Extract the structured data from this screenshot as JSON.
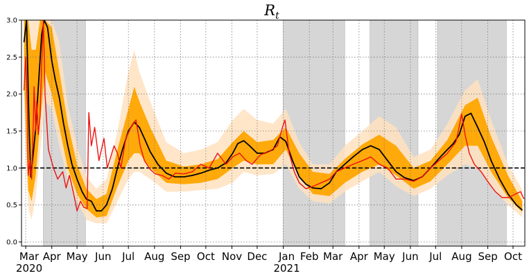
{
  "chart_data": {
    "type": "line",
    "title": "R",
    "title_subscript": "t",
    "xlabel": "",
    "ylabel": "",
    "ylim": [
      0,
      3
    ],
    "x_range": [
      "2020-02-25",
      "2021-10-15"
    ],
    "yticks": [
      "0.0",
      "0.5",
      "1.0",
      "1.5",
      "2.0",
      "2.5",
      "3.0"
    ],
    "yticks_values": [
      0,
      0.5,
      1.0,
      1.5,
      2.0,
      2.5,
      3.0
    ],
    "xticks": [
      {
        "label": "Mar",
        "date": "2020-03-01",
        "year_label": "2020"
      },
      {
        "label": "Apr",
        "date": "2020-04-01"
      },
      {
        "label": "May",
        "date": "2020-05-01"
      },
      {
        "label": "Jun",
        "date": "2020-06-01"
      },
      {
        "label": "Jul",
        "date": "2020-07-01"
      },
      {
        "label": "Aug",
        "date": "2020-08-01"
      },
      {
        "label": "Sep",
        "date": "2020-09-01"
      },
      {
        "label": "Oct",
        "date": "2020-10-01"
      },
      {
        "label": "Nov",
        "date": "2020-11-01"
      },
      {
        "label": "Dec",
        "date": "2020-12-01"
      },
      {
        "label": "Jan",
        "date": "2021-01-01",
        "year_label": "2021"
      },
      {
        "label": "Feb",
        "date": "2021-02-01"
      },
      {
        "label": "Mar",
        "date": "2021-03-01"
      },
      {
        "label": "Apr",
        "date": "2021-04-01"
      },
      {
        "label": "May",
        "date": "2021-05-01"
      },
      {
        "label": "Jun",
        "date": "2021-06-01"
      },
      {
        "label": "Jul",
        "date": "2021-07-01"
      },
      {
        "label": "Aug",
        "date": "2021-08-01"
      },
      {
        "label": "Sep",
        "date": "2021-09-01"
      },
      {
        "label": "Oct",
        "date": "2021-10-01"
      }
    ],
    "grid": true,
    "reference_line": {
      "y": 1.0,
      "style": "dashed",
      "color": "#000000"
    },
    "shaded_periods": [
      {
        "start": "2020-03-22",
        "end": "2020-05-11"
      },
      {
        "start": "2021-01-01",
        "end": "2021-03-15"
      },
      {
        "start": "2021-04-14",
        "end": "2021-06-10"
      },
      {
        "start": "2021-07-03",
        "end": "2021-09-23"
      }
    ],
    "colors": {
      "band_outer": "#FFE2BF",
      "band_inner": "#FFA500",
      "estimate_line": "#000000",
      "observed_line": "#EE1111",
      "shaded_period": "#D6D6D6"
    },
    "series": [
      {
        "role": "estimate",
        "x": [
          "2020-02-28",
          "2020-03-02",
          "2020-03-05",
          "2020-03-07",
          "2020-03-10",
          "2020-03-13",
          "2020-03-16",
          "2020-03-20",
          "2020-03-23",
          "2020-03-27",
          "2020-04-01",
          "2020-04-05",
          "2020-04-10",
          "2020-04-15",
          "2020-04-20",
          "2020-04-25",
          "2020-05-01",
          "2020-05-07",
          "2020-05-12",
          "2020-05-18",
          "2020-05-24",
          "2020-05-30",
          "2020-06-05",
          "2020-06-12",
          "2020-06-18",
          "2020-06-24",
          "2020-07-01",
          "2020-07-08",
          "2020-07-14",
          "2020-07-20",
          "2020-07-27",
          "2020-08-05",
          "2020-08-15",
          "2020-08-25",
          "2020-09-05",
          "2020-09-15",
          "2020-09-25",
          "2020-10-05",
          "2020-10-15",
          "2020-10-25",
          "2020-11-02",
          "2020-11-08",
          "2020-11-15",
          "2020-11-22",
          "2020-12-01",
          "2020-12-10",
          "2020-12-20",
          "2020-12-28",
          "2021-01-04",
          "2021-01-12",
          "2021-01-20",
          "2021-01-28",
          "2021-02-05",
          "2021-02-15",
          "2021-02-25",
          "2021-03-05",
          "2021-03-15",
          "2021-03-25",
          "2021-04-05",
          "2021-04-15",
          "2021-04-25",
          "2021-05-05",
          "2021-05-15",
          "2021-05-25",
          "2021-06-05",
          "2021-06-15",
          "2021-06-25",
          "2021-07-05",
          "2021-07-15",
          "2021-07-22",
          "2021-07-29",
          "2021-08-05",
          "2021-08-12",
          "2021-08-20",
          "2021-08-28",
          "2021-09-05",
          "2021-09-15",
          "2021-09-25",
          "2021-10-05",
          "2021-10-12"
        ],
        "y": [
          2.7,
          3.0,
          1.6,
          0.88,
          1.2,
          1.55,
          2.1,
          2.8,
          3.0,
          2.9,
          2.45,
          2.2,
          1.95,
          1.6,
          1.3,
          1.05,
          0.85,
          0.68,
          0.58,
          0.55,
          0.42,
          0.42,
          0.5,
          0.72,
          1.0,
          1.25,
          1.5,
          1.62,
          1.55,
          1.4,
          1.22,
          1.05,
          0.93,
          0.88,
          0.88,
          0.9,
          0.93,
          0.97,
          1.0,
          1.07,
          1.2,
          1.33,
          1.37,
          1.3,
          1.2,
          1.2,
          1.25,
          1.42,
          1.36,
          1.1,
          0.88,
          0.78,
          0.73,
          0.72,
          0.8,
          0.95,
          1.05,
          1.15,
          1.25,
          1.3,
          1.25,
          1.1,
          0.95,
          0.87,
          0.83,
          0.88,
          1.0,
          1.13,
          1.25,
          1.33,
          1.45,
          1.7,
          1.74,
          1.55,
          1.35,
          1.1,
          0.85,
          0.65,
          0.5,
          0.43
        ]
      },
      {
        "role": "observed",
        "x": [
          "2020-02-28",
          "2020-03-01",
          "2020-03-03",
          "2020-03-04",
          "2020-03-06",
          "2020-03-08",
          "2020-03-10",
          "2020-03-11",
          "2020-03-13",
          "2020-03-14",
          "2020-03-16",
          "2020-03-18",
          "2020-03-20",
          "2020-03-22",
          "2020-03-24",
          "2020-03-28",
          "2020-04-03",
          "2020-04-08",
          "2020-04-14",
          "2020-04-18",
          "2020-04-22",
          "2020-04-27",
          "2020-05-01",
          "2020-05-05",
          "2020-05-09",
          "2020-05-13",
          "2020-05-15",
          "2020-05-18",
          "2020-05-22",
          "2020-05-27",
          "2020-06-02",
          "2020-06-06",
          "2020-06-10",
          "2020-06-14",
          "2020-06-18",
          "2020-06-22",
          "2020-06-28",
          "2020-07-04",
          "2020-07-10",
          "2020-07-15",
          "2020-07-20",
          "2020-07-27",
          "2020-08-02",
          "2020-08-10",
          "2020-08-18",
          "2020-08-26",
          "2020-09-05",
          "2020-09-15",
          "2020-09-25",
          "2020-10-05",
          "2020-10-15",
          "2020-10-25",
          "2020-11-02",
          "2020-11-10",
          "2020-11-18",
          "2020-11-25",
          "2020-12-05",
          "2020-12-15",
          "2020-12-25",
          "2020-12-31",
          "2021-01-03",
          "2021-01-08",
          "2021-01-14",
          "2021-01-20",
          "2021-01-28",
          "2021-02-05",
          "2021-02-15",
          "2021-02-25",
          "2021-03-05",
          "2021-03-15",
          "2021-03-25",
          "2021-04-05",
          "2021-04-15",
          "2021-04-25",
          "2021-05-05",
          "2021-05-15",
          "2021-05-25",
          "2021-06-05",
          "2021-06-15",
          "2021-06-25",
          "2021-07-05",
          "2021-07-15",
          "2021-07-25",
          "2021-07-28",
          "2021-08-01",
          "2021-08-05",
          "2021-08-10",
          "2021-08-16",
          "2021-08-24",
          "2021-09-02",
          "2021-09-10",
          "2021-09-18",
          "2021-09-26",
          "2021-10-04",
          "2021-10-10",
          "2021-10-14"
        ],
        "y": [
          2.05,
          2.5,
          1.85,
          0.9,
          1.1,
          0.85,
          1.6,
          2.1,
          1.5,
          1.9,
          1.45,
          1.7,
          2.4,
          3.0,
          2.0,
          1.25,
          1.0,
          0.85,
          0.95,
          0.73,
          0.9,
          0.65,
          0.42,
          0.55,
          0.47,
          0.45,
          1.75,
          1.3,
          1.55,
          1.1,
          1.4,
          1.0,
          1.15,
          1.3,
          1.2,
          1.0,
          1.4,
          1.55,
          1.65,
          1.3,
          1.1,
          0.98,
          0.92,
          0.9,
          0.85,
          0.93,
          0.92,
          0.95,
          1.05,
          1.0,
          1.2,
          1.05,
          1.15,
          1.2,
          1.1,
          1.05,
          1.18,
          1.22,
          1.3,
          1.55,
          1.65,
          1.2,
          0.95,
          0.8,
          0.72,
          0.75,
          0.8,
          0.85,
          0.95,
          1.0,
          1.05,
          1.1,
          1.15,
          1.05,
          1.0,
          0.85,
          0.85,
          0.82,
          0.88,
          1.0,
          1.1,
          1.2,
          1.35,
          1.5,
          1.73,
          1.45,
          1.2,
          1.05,
          0.95,
          0.8,
          0.68,
          0.6,
          0.6,
          0.65,
          0.68,
          0.58
        ]
      }
    ],
    "band_outer": {
      "x": [
        "2020-02-28",
        "2020-03-04",
        "2020-03-08",
        "2020-03-13",
        "2020-03-18",
        "2020-03-24",
        "2020-04-01",
        "2020-04-10",
        "2020-04-20",
        "2020-05-01",
        "2020-05-12",
        "2020-05-24",
        "2020-06-05",
        "2020-06-18",
        "2020-07-01",
        "2020-07-08",
        "2020-07-14",
        "2020-07-27",
        "2020-08-15",
        "2020-09-05",
        "2020-09-25",
        "2020-10-15",
        "2020-11-02",
        "2020-11-15",
        "2020-12-01",
        "2020-12-20",
        "2021-01-04",
        "2021-01-20",
        "2021-02-05",
        "2021-02-25",
        "2021-03-15",
        "2021-04-05",
        "2021-04-25",
        "2021-05-15",
        "2021-06-05",
        "2021-06-25",
        "2021-07-15",
        "2021-08-05",
        "2021-08-20",
        "2021-09-05",
        "2021-09-25",
        "2021-10-12"
      ],
      "upper": [
        3.0,
        3.0,
        3.0,
        3.0,
        3.0,
        3.0,
        3.0,
        2.7,
        1.85,
        1.3,
        0.88,
        0.72,
        0.85,
        1.5,
        2.3,
        2.6,
        2.3,
        1.9,
        1.35,
        1.2,
        1.25,
        1.35,
        1.65,
        1.8,
        1.65,
        1.6,
        1.8,
        1.35,
        1.05,
        1.05,
        1.3,
        1.5,
        1.7,
        1.55,
        1.15,
        1.25,
        1.6,
        2.05,
        2.2,
        1.65,
        1.05,
        0.7
      ],
      "lower": [
        1.8,
        0.45,
        0.3,
        0.6,
        1.2,
        1.9,
        1.8,
        1.3,
        0.85,
        0.55,
        0.3,
        0.25,
        0.25,
        0.55,
        0.85,
        0.95,
        0.95,
        0.85,
        0.68,
        0.68,
        0.7,
        0.72,
        0.8,
        0.95,
        0.9,
        0.92,
        1.05,
        0.72,
        0.55,
        0.52,
        0.68,
        0.82,
        0.95,
        0.75,
        0.62,
        0.72,
        0.9,
        1.05,
        1.0,
        0.75,
        0.5,
        0.33
      ]
    },
    "band_inner": {
      "x": [
        "2020-02-28",
        "2020-03-04",
        "2020-03-08",
        "2020-03-13",
        "2020-03-18",
        "2020-03-24",
        "2020-04-01",
        "2020-04-10",
        "2020-04-20",
        "2020-05-01",
        "2020-05-12",
        "2020-05-24",
        "2020-06-05",
        "2020-06-18",
        "2020-07-01",
        "2020-07-08",
        "2020-07-14",
        "2020-07-27",
        "2020-08-15",
        "2020-09-05",
        "2020-09-25",
        "2020-10-15",
        "2020-11-02",
        "2020-11-15",
        "2020-12-01",
        "2020-12-20",
        "2021-01-04",
        "2021-01-20",
        "2021-02-05",
        "2021-02-25",
        "2021-03-15",
        "2021-04-05",
        "2021-04-25",
        "2021-05-15",
        "2021-06-05",
        "2021-06-25",
        "2021-07-15",
        "2021-08-05",
        "2021-08-20",
        "2021-09-05",
        "2021-09-25",
        "2021-10-12"
      ],
      "upper": [
        3.0,
        3.0,
        2.6,
        2.6,
        3.0,
        3.0,
        2.9,
        2.3,
        1.6,
        1.05,
        0.72,
        0.58,
        0.65,
        1.25,
        1.8,
        2.1,
        1.9,
        1.55,
        1.1,
        1.02,
        1.05,
        1.12,
        1.35,
        1.5,
        1.35,
        1.38,
        1.55,
        1.2,
        0.95,
        0.92,
        1.12,
        1.32,
        1.45,
        1.3,
        1.0,
        1.1,
        1.38,
        1.85,
        1.95,
        1.42,
        0.9,
        0.55
      ],
      "lower": [
        2.2,
        0.7,
        0.55,
        0.9,
        1.6,
        2.3,
        2.0,
        1.55,
        1.0,
        0.65,
        0.45,
        0.33,
        0.35,
        0.75,
        1.1,
        1.2,
        1.2,
        1.0,
        0.8,
        0.78,
        0.8,
        0.85,
        1.0,
        1.1,
        1.05,
        1.05,
        1.25,
        0.9,
        0.65,
        0.62,
        0.8,
        0.95,
        1.05,
        0.9,
        0.72,
        0.82,
        1.05,
        1.3,
        1.3,
        0.95,
        0.6,
        0.4
      ]
    }
  }
}
